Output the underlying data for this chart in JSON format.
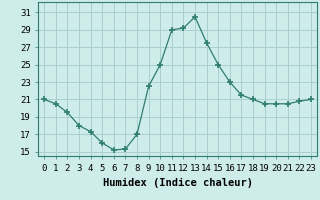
{
  "x": [
    0,
    1,
    2,
    3,
    4,
    5,
    6,
    7,
    8,
    9,
    10,
    11,
    12,
    13,
    14,
    15,
    16,
    17,
    18,
    19,
    20,
    21,
    22,
    23
  ],
  "y": [
    21,
    20.5,
    19.5,
    18,
    17.3,
    16,
    15.2,
    15.3,
    17,
    22.5,
    25,
    29,
    29.2,
    30.5,
    27.5,
    25,
    23,
    21.5,
    21,
    20.5,
    20.5,
    20.5,
    20.8,
    21
  ],
  "line_color": "#2e7d6e",
  "bg_color": "#ceecea",
  "grid_color": "#aacfcc",
  "xlabel": "Humidex (Indice chaleur)",
  "ylabel_ticks": [
    15,
    17,
    19,
    21,
    23,
    25,
    27,
    29,
    31
  ],
  "xlim": [
    -0.5,
    23.5
  ],
  "ylim": [
    14.5,
    32.2
  ],
  "tick_fontsize": 6.5,
  "xlabel_fontsize": 7.5
}
